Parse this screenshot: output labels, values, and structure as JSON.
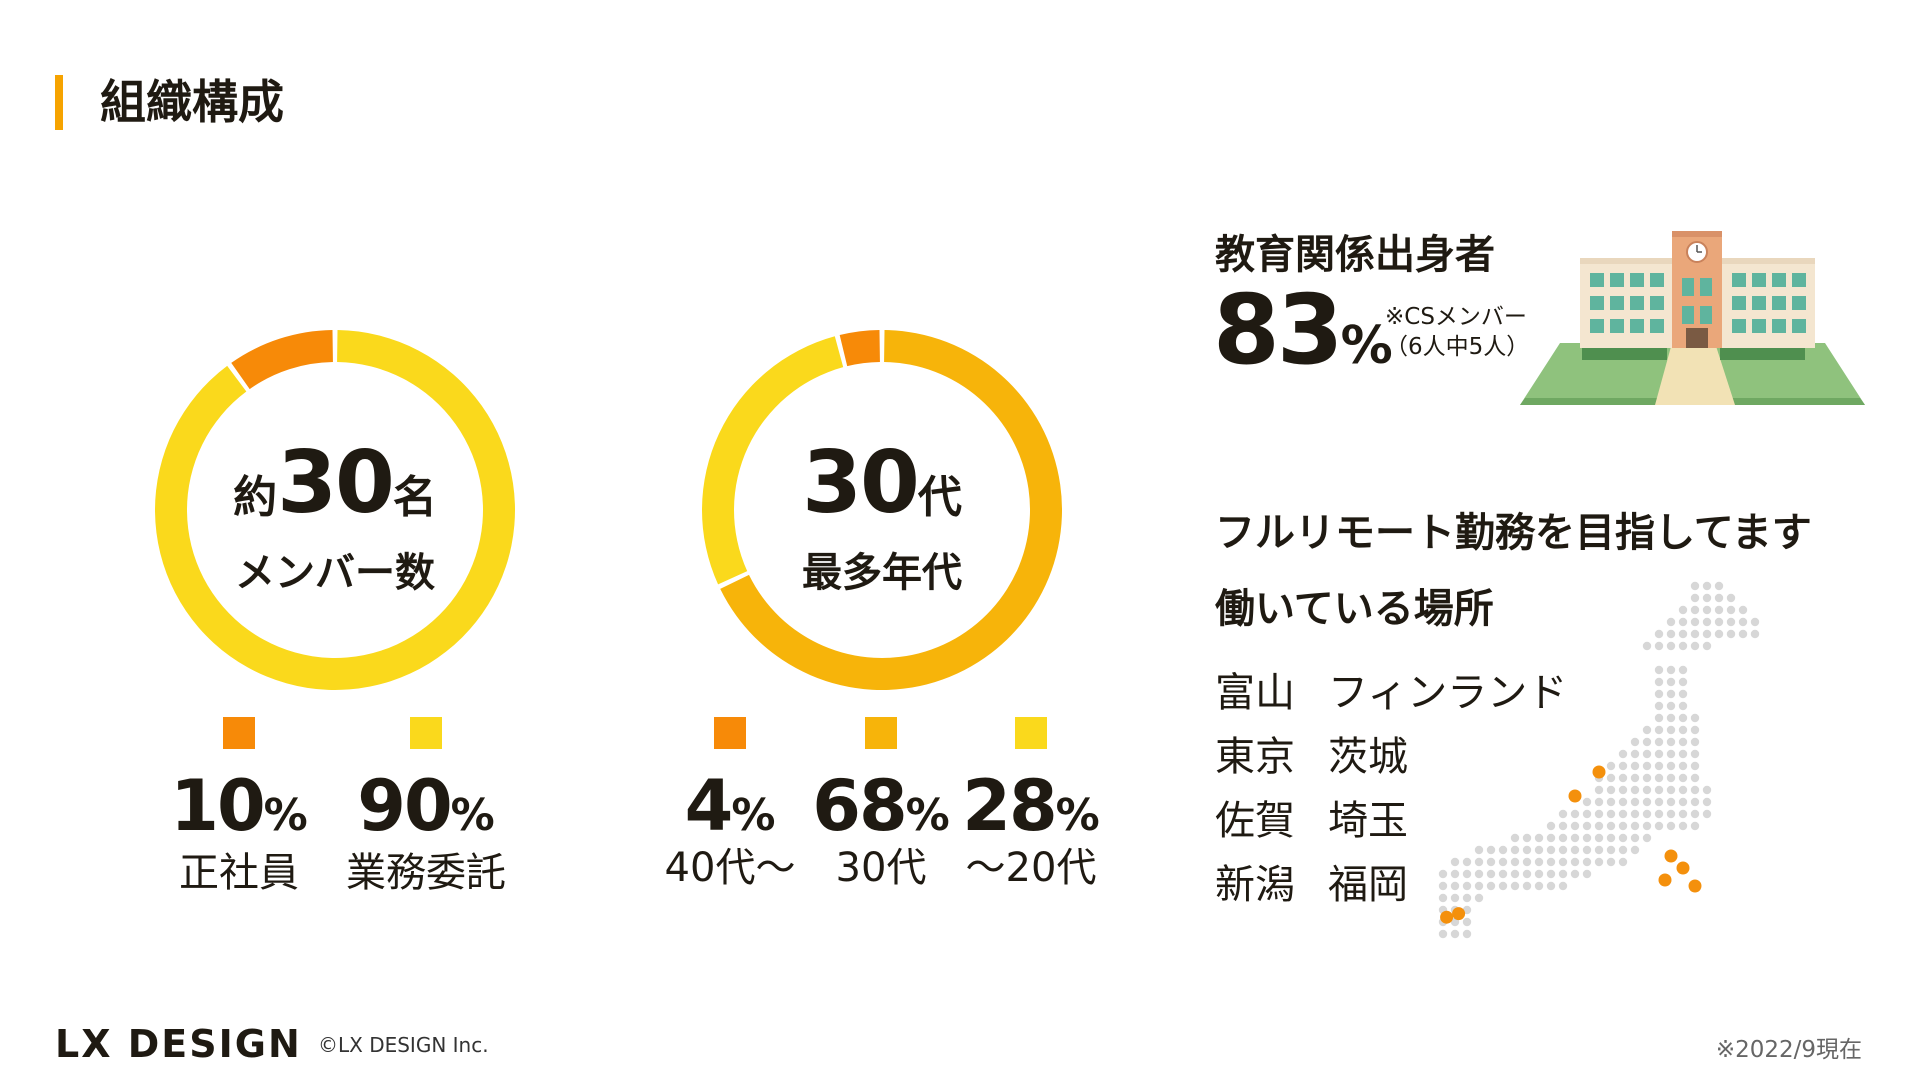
{
  "title": "組織構成",
  "colors": {
    "accent": "#f6a300",
    "orange": "#f78a08",
    "amber": "#f7b40a",
    "yellow": "#fad91c",
    "text": "#1f1a12",
    "map_dot": "#d7d7d7",
    "map_pin": "#f4900c"
  },
  "chart_data": [
    {
      "type": "pie",
      "style": "donut",
      "center": {
        "prefix": "約",
        "value": "30",
        "suffix": "名",
        "label": "メンバー数"
      },
      "slices": [
        {
          "name": "正社員",
          "value": 10,
          "display": "10",
          "unit": "%",
          "color": "#f78a08"
        },
        {
          "name": "業務委託",
          "value": 90,
          "display": "90",
          "unit": "%",
          "color": "#fad91c"
        }
      ]
    },
    {
      "type": "pie",
      "style": "donut",
      "center": {
        "value": "30",
        "suffix": "代",
        "label": "最多年代"
      },
      "slices": [
        {
          "name": "40代〜",
          "value": 4,
          "display": "4",
          "unit": "%",
          "color": "#f78a08"
        },
        {
          "name": "30代",
          "value": 68,
          "display": "68",
          "unit": "%",
          "color": "#f7b40a"
        },
        {
          "name": "〜20代",
          "value": 28,
          "display": "28",
          "unit": "%",
          "color": "#fad91c"
        }
      ]
    }
  ],
  "education": {
    "title": "教育関係出身者",
    "value": "83",
    "unit": "%",
    "note_line1": "※CSメンバー",
    "note_line2": "（6人中5人）",
    "illustration": "school-building-icon"
  },
  "remote": {
    "title": "フルリモート勤務を目指してます"
  },
  "places": {
    "title": "働いている場所",
    "rows": [
      [
        "富山",
        "フィンランド"
      ],
      [
        "東京",
        "茨城"
      ],
      [
        "佐賀",
        "埼玉"
      ],
      [
        "新潟",
        "福岡"
      ]
    ],
    "map": "japan-dot-map-icon"
  },
  "footer": {
    "logo": "LX DESIGN",
    "copyright": "©LX DESIGN Inc.",
    "as_of": "※2022/9現在"
  }
}
